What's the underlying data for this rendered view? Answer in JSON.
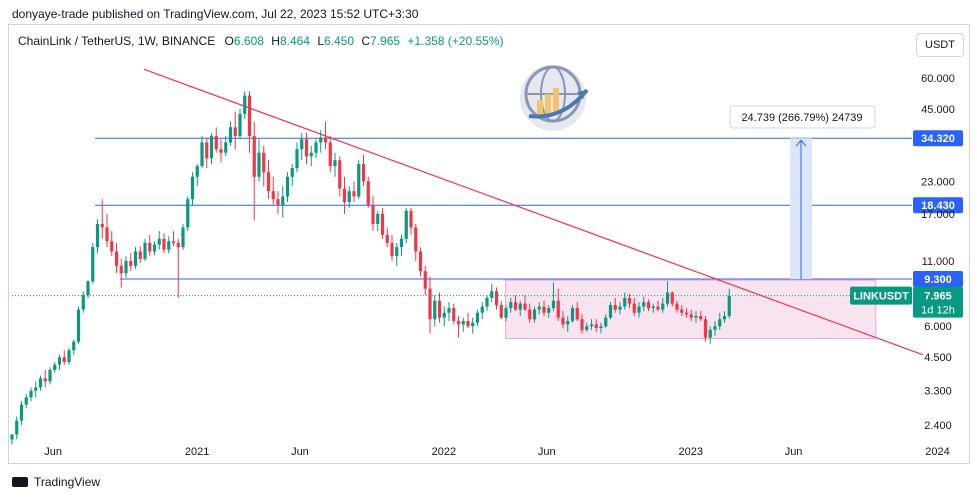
{
  "header": {
    "publisher": "donyaye-trade published on TradingView.com, Jul 22, 2023 15:52 UTC+3:30"
  },
  "legend": {
    "symbol": "ChainLink / TetherUS, 1W, BINANCE",
    "open_label": "O",
    "open": "6.608",
    "high_label": "H",
    "high": "8.464",
    "low_label": "L",
    "low": "6.450",
    "close_label": "C",
    "close": "7.965",
    "change": "+1.358 (+20.55%)"
  },
  "currency_button": "USDT",
  "footer": {
    "brand": "TradingView"
  },
  "colors": {
    "up": "#089981",
    "down": "#f23645",
    "level_line": "#2962ff",
    "trendline": "#f23645",
    "range_box": "#f8e3f0",
    "measure": "#dbe6fb"
  },
  "chart_data": {
    "type": "candlestick",
    "symbol": "LINKUSDT",
    "price_scale": "log",
    "y_ticks": [
      "60.000",
      "45.000",
      "34.320",
      "23.000",
      "18.430",
      "17.000",
      "11.000",
      "9.300",
      "7.965",
      "6.000",
      "4.500",
      "3.300",
      "2.400"
    ],
    "x_ticks": [
      "Jun",
      "2021",
      "Jun",
      "2022",
      "Jun",
      "2023",
      "Jun",
      "2024"
    ],
    "levels": [
      {
        "price": 34.32,
        "label": "34.320"
      },
      {
        "price": 18.43,
        "label": "18.430"
      },
      {
        "price": 9.3,
        "label": "9.300"
      }
    ],
    "current_price": {
      "label": "LINKUSDT",
      "price": "7.965",
      "countdown": "1d 12h"
    },
    "measure_annotation": "24.739 (266.79%) 24739",
    "range_box": {
      "price_top": 9.2,
      "price_bottom": 5.35,
      "from": "2022-04",
      "to": "2023-10"
    },
    "trendline": {
      "from": {
        "date": "2020-11",
        "price": 65
      },
      "to": {
        "date": "2023-12",
        "price": 4.6
      }
    },
    "candles": [
      [
        2.1,
        2.2,
        2.0,
        2.2
      ],
      [
        2.2,
        2.6,
        2.1,
        2.5
      ],
      [
        2.5,
        3.0,
        2.4,
        2.9
      ],
      [
        2.9,
        3.2,
        2.8,
        3.1
      ],
      [
        3.1,
        3.4,
        3.0,
        3.3
      ],
      [
        3.3,
        3.6,
        3.1,
        3.4
      ],
      [
        3.4,
        3.8,
        3.3,
        3.7
      ],
      [
        3.7,
        4.0,
        3.4,
        3.6
      ],
      [
        3.6,
        4.1,
        3.5,
        4.0
      ],
      [
        4.0,
        4.3,
        3.9,
        4.2
      ],
      [
        4.2,
        4.6,
        4.0,
        4.5
      ],
      [
        4.5,
        4.8,
        4.2,
        4.3
      ],
      [
        4.3,
        4.9,
        4.2,
        4.8
      ],
      [
        4.8,
        5.3,
        4.6,
        5.2
      ],
      [
        5.2,
        7.2,
        5.1,
        7.0
      ],
      [
        7.0,
        8.3,
        6.8,
        8.0
      ],
      [
        8.0,
        9.2,
        7.8,
        9.1
      ],
      [
        9.1,
        13.0,
        8.9,
        12.5
      ],
      [
        12.5,
        16.2,
        11.8,
        15.5
      ],
      [
        15.5,
        19.5,
        13.5,
        15.0
      ],
      [
        15.0,
        17.0,
        12.5,
        13.2
      ],
      [
        13.2,
        14.5,
        11.5,
        12.0
      ],
      [
        12.0,
        13.0,
        9.8,
        10.5
      ],
      [
        10.5,
        11.2,
        8.6,
        9.8
      ],
      [
        9.8,
        11.5,
        9.4,
        11.0
      ],
      [
        11.0,
        11.8,
        10.0,
        10.5
      ],
      [
        10.5,
        12.5,
        10.2,
        12.0
      ],
      [
        12.0,
        12.6,
        10.8,
        11.2
      ],
      [
        11.2,
        13.5,
        11.0,
        13.0
      ],
      [
        13.0,
        14.0,
        11.5,
        12.0
      ],
      [
        12.0,
        13.2,
        11.6,
        12.8
      ],
      [
        12.8,
        14.5,
        12.2,
        13.5
      ],
      [
        13.5,
        14.2,
        11.8,
        12.2
      ],
      [
        12.2,
        13.8,
        11.8,
        13.2
      ],
      [
        13.2,
        14.5,
        12.6,
        13.0
      ],
      [
        13.0,
        13.5,
        7.8,
        12.5
      ],
      [
        12.5,
        15.5,
        12.2,
        15.0
      ],
      [
        15.0,
        20.0,
        14.5,
        19.5
      ],
      [
        19.5,
        25.0,
        18.5,
        24.0
      ],
      [
        24.0,
        27.0,
        22.0,
        26.5
      ],
      [
        26.5,
        35.0,
        26.0,
        33.0
      ],
      [
        33.0,
        34.5,
        26.0,
        28.5
      ],
      [
        28.5,
        36.0,
        27.0,
        35.0
      ],
      [
        35.0,
        38.0,
        30.0,
        31.0
      ],
      [
        31.0,
        34.0,
        27.5,
        30.0
      ],
      [
        30.0,
        35.0,
        29.0,
        33.0
      ],
      [
        33.0,
        40.0,
        32.0,
        38.0
      ],
      [
        38.0,
        44.0,
        31.0,
        35.0
      ],
      [
        35.0,
        45.0,
        34.0,
        43.0
      ],
      [
        43.0,
        53.0,
        41.0,
        51.0
      ],
      [
        51.0,
        53.0,
        30.0,
        35.0
      ],
      [
        35.0,
        40.0,
        16.0,
        24.0
      ],
      [
        24.0,
        34.0,
        23.0,
        30.0
      ],
      [
        30.0,
        32.0,
        22.0,
        25.0
      ],
      [
        25.0,
        28.0,
        19.5,
        21.0
      ],
      [
        21.0,
        24.0,
        18.5,
        19.5
      ],
      [
        19.5,
        21.0,
        17.0,
        18.5
      ],
      [
        18.5,
        22.0,
        16.5,
        20.0
      ],
      [
        20.0,
        25.0,
        19.0,
        24.0
      ],
      [
        24.0,
        27.0,
        22.0,
        26.0
      ],
      [
        26.0,
        33.0,
        25.0,
        31.0
      ],
      [
        31.0,
        36.0,
        28.0,
        34.0
      ],
      [
        34.0,
        36.0,
        27.0,
        29.0
      ],
      [
        29.0,
        32.0,
        26.5,
        30.0
      ],
      [
        30.0,
        34.0,
        28.5,
        33.0
      ],
      [
        33.0,
        37.0,
        30.0,
        34.5
      ],
      [
        34.5,
        40.0,
        31.0,
        33.0
      ],
      [
        33.0,
        35.0,
        25.0,
        26.5
      ],
      [
        26.5,
        30.0,
        24.0,
        28.0
      ],
      [
        28.0,
        29.0,
        20.0,
        21.5
      ],
      [
        21.5,
        24.0,
        17.0,
        19.0
      ],
      [
        19.0,
        22.0,
        18.0,
        21.0
      ],
      [
        21.0,
        23.0,
        19.0,
        20.0
      ],
      [
        20.0,
        28.0,
        19.5,
        27.0
      ],
      [
        27.0,
        29.5,
        22.0,
        23.0
      ],
      [
        23.0,
        24.0,
        18.0,
        18.5
      ],
      [
        18.5,
        20.0,
        14.5,
        15.5
      ],
      [
        15.5,
        17.5,
        14.5,
        17.0
      ],
      [
        17.0,
        18.0,
        13.5,
        14.0
      ],
      [
        14.0,
        15.0,
        12.5,
        13.0
      ],
      [
        13.0,
        14.0,
        11.0,
        11.5
      ],
      [
        11.5,
        13.0,
        10.5,
        12.5
      ],
      [
        12.5,
        14.0,
        11.5,
        13.5
      ],
      [
        13.5,
        18.0,
        13.0,
        17.5
      ],
      [
        17.5,
        18.0,
        14.0,
        15.0
      ],
      [
        15.0,
        15.5,
        11.0,
        12.0
      ],
      [
        12.0,
        12.5,
        9.5,
        10.0
      ],
      [
        10.0,
        10.5,
        8.0,
        8.5
      ],
      [
        8.5,
        9.5,
        5.6,
        6.4
      ],
      [
        6.4,
        8.0,
        6.0,
        7.6
      ],
      [
        7.6,
        8.2,
        6.2,
        6.5
      ],
      [
        6.5,
        7.2,
        6.0,
        6.8
      ],
      [
        6.8,
        7.5,
        6.3,
        7.1
      ],
      [
        7.1,
        7.4,
        6.1,
        6.3
      ],
      [
        6.3,
        6.6,
        5.4,
        6.1
      ],
      [
        6.1,
        6.5,
        5.7,
        6.3
      ],
      [
        6.3,
        6.8,
        5.9,
        6.0
      ],
      [
        6.0,
        6.5,
        5.6,
        6.2
      ],
      [
        6.2,
        7.0,
        6.0,
        6.8
      ],
      [
        6.8,
        7.5,
        6.4,
        7.2
      ],
      [
        7.2,
        8.0,
        6.9,
        7.8
      ],
      [
        7.8,
        8.9,
        7.5,
        8.3
      ],
      [
        8.3,
        8.6,
        7.0,
        7.3
      ],
      [
        7.3,
        7.6,
        6.4,
        6.5
      ],
      [
        6.5,
        7.3,
        6.3,
        7.1
      ],
      [
        7.1,
        7.8,
        6.8,
        7.5
      ],
      [
        7.5,
        8.0,
        6.9,
        7.0
      ],
      [
        7.0,
        7.6,
        6.6,
        7.4
      ],
      [
        7.4,
        8.0,
        6.9,
        7.0
      ],
      [
        7.0,
        7.4,
        6.2,
        6.4
      ],
      [
        6.4,
        7.2,
        6.2,
        7.0
      ],
      [
        7.0,
        7.5,
        6.7,
        7.2
      ],
      [
        7.2,
        7.6,
        6.6,
        6.8
      ],
      [
        6.8,
        7.3,
        6.5,
        7.1
      ],
      [
        7.1,
        9.0,
        6.9,
        7.6
      ],
      [
        7.6,
        8.5,
        6.3,
        6.5
      ],
      [
        6.5,
        6.9,
        5.9,
        6.1
      ],
      [
        6.1,
        6.6,
        5.7,
        6.3
      ],
      [
        6.3,
        7.3,
        6.2,
        7.1
      ],
      [
        7.1,
        7.5,
        6.3,
        6.4
      ],
      [
        6.4,
        6.7,
        5.6,
        5.8
      ],
      [
        5.8,
        6.2,
        5.7,
        6.0
      ],
      [
        6.0,
        6.4,
        5.8,
        6.1
      ],
      [
        6.1,
        6.4,
        5.7,
        5.9
      ],
      [
        5.9,
        6.2,
        5.6,
        6.0
      ],
      [
        6.0,
        6.7,
        5.9,
        6.5
      ],
      [
        6.5,
        7.5,
        6.4,
        7.3
      ],
      [
        7.3,
        7.8,
        6.8,
        7.0
      ],
      [
        7.0,
        7.5,
        6.7,
        7.2
      ],
      [
        7.2,
        8.2,
        7.0,
        7.8
      ],
      [
        7.8,
        8.1,
        7.1,
        7.4
      ],
      [
        7.4,
        7.8,
        6.6,
        6.8
      ],
      [
        6.8,
        7.5,
        6.5,
        7.2
      ],
      [
        7.2,
        7.9,
        6.9,
        7.5
      ],
      [
        7.5,
        7.7,
        6.9,
        7.1
      ],
      [
        7.1,
        7.4,
        6.8,
        7.2
      ],
      [
        7.2,
        7.6,
        6.9,
        7.0
      ],
      [
        7.0,
        7.8,
        6.8,
        7.4
      ],
      [
        7.4,
        9.1,
        7.2,
        8.2
      ],
      [
        8.2,
        8.3,
        7.2,
        7.4
      ],
      [
        7.4,
        7.6,
        6.8,
        7.0
      ],
      [
        7.0,
        7.3,
        6.6,
        6.8
      ],
      [
        6.8,
        7.1,
        6.5,
        6.7
      ],
      [
        6.7,
        7.0,
        6.3,
        6.5
      ],
      [
        6.5,
        6.9,
        6.2,
        6.6
      ],
      [
        6.6,
        6.9,
        6.3,
        6.4
      ],
      [
        6.4,
        6.6,
        5.2,
        5.4
      ],
      [
        5.4,
        6.0,
        5.1,
        5.8
      ],
      [
        5.8,
        6.3,
        5.5,
        6.0
      ],
      [
        6.0,
        6.8,
        5.8,
        6.4
      ],
      [
        6.4,
        6.9,
        6.2,
        6.6
      ],
      [
        6.6,
        8.5,
        6.45,
        7.965
      ]
    ]
  }
}
